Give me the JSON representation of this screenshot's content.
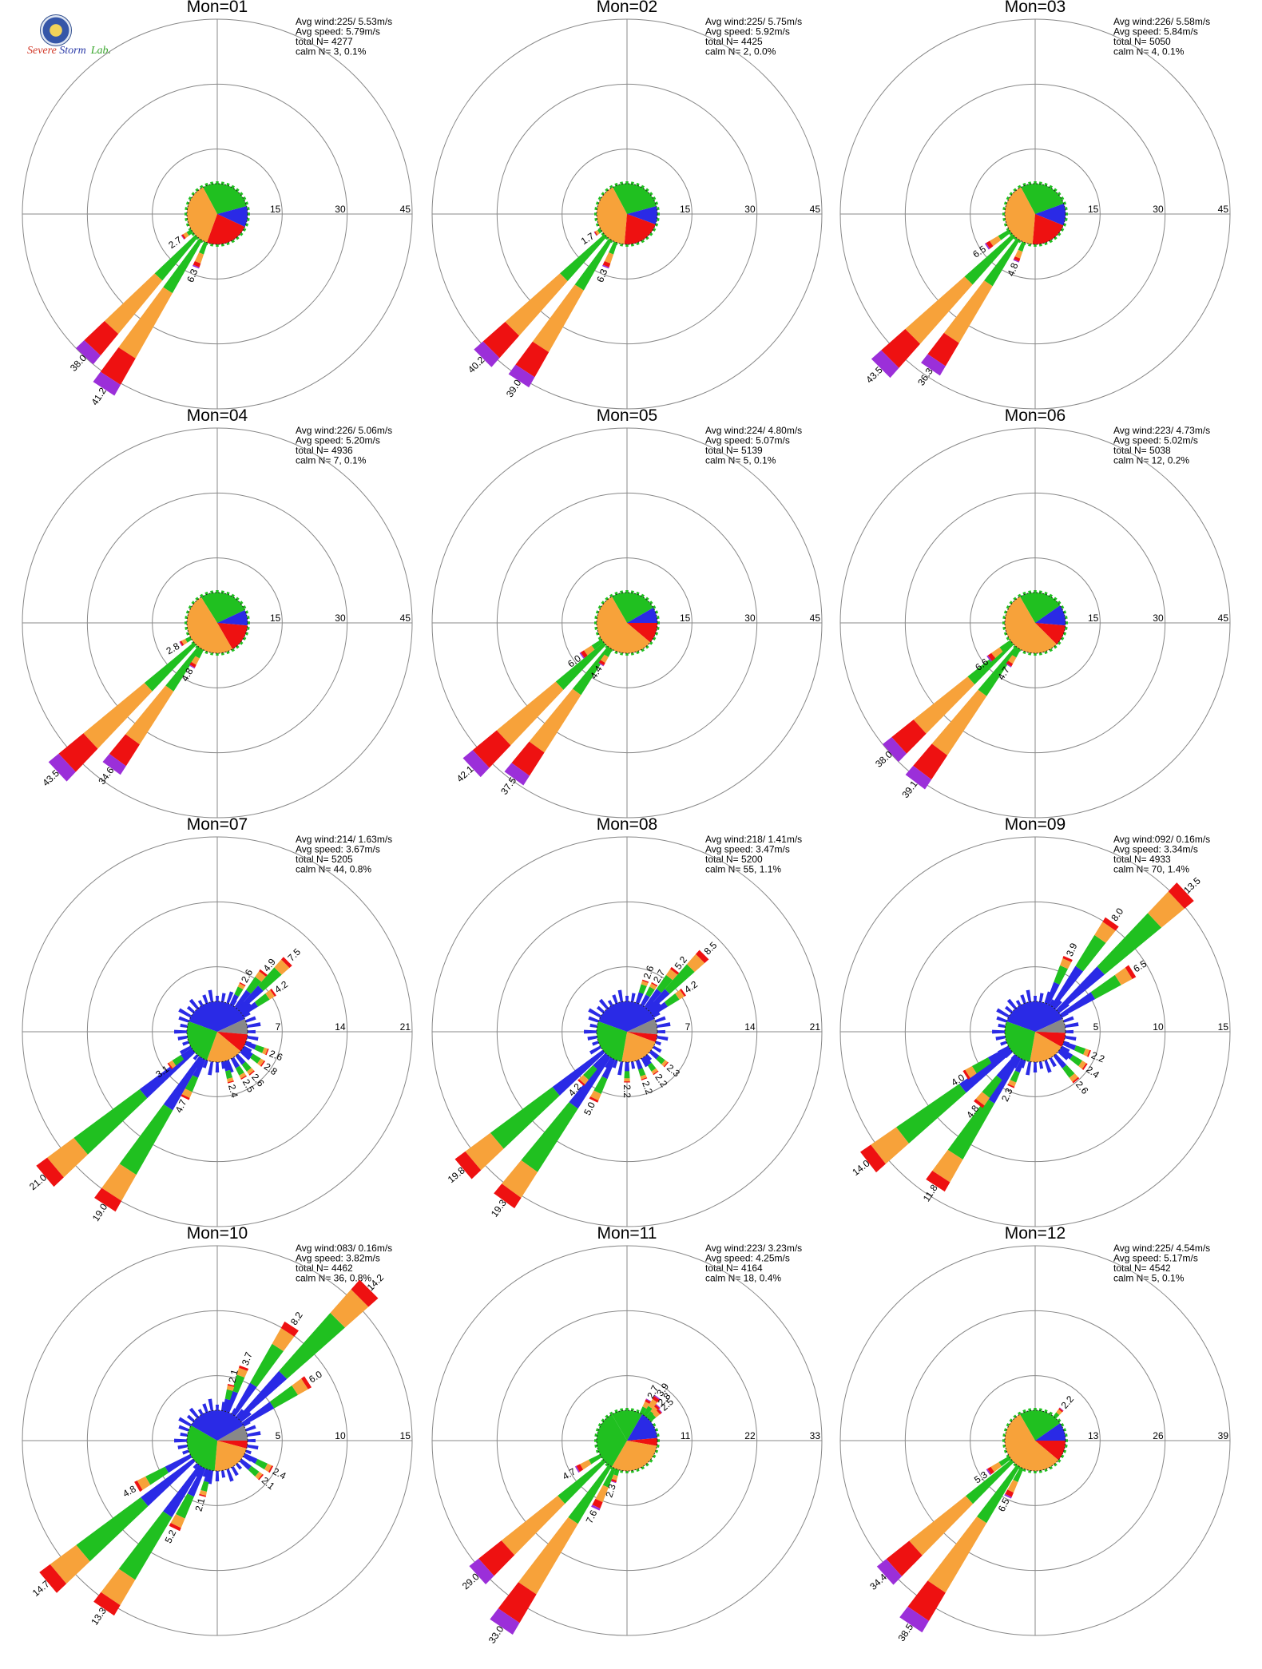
{
  "figure": {
    "logo_text": "SEVERE STORM Lab.",
    "bin_colors": [
      "#2a2ae6",
      "#20c020",
      "#f7a23a",
      "#ee1111",
      "#9b2fd9",
      "#888888"
    ],
    "grid_color": "#888888"
  },
  "chart_data": [
    {
      "type": "rose",
      "title": "Mon=01",
      "stats": [
        "Avg wind:225/ 5.53m/s",
        "Avg speed: 5.79m/s",
        "total N=      4277",
        "calm N=      3,   0.1%"
      ],
      "rings": [
        "15",
        "30",
        "45"
      ],
      "rmax": 45,
      "spikes": [
        {
          "dir": 213,
          "v": 41.2,
          "label": "41.2"
        },
        {
          "dir": 223,
          "v": 38.0,
          "label": "38.0"
        },
        {
          "dir": 202,
          "v": 6.3,
          "label": "6.3"
        },
        {
          "dir": 236,
          "v": 2.7,
          "label": "2.7"
        }
      ],
      "pie": [
        {
          "from": -28,
          "to": 75,
          "c": "#20c020"
        },
        {
          "from": 75,
          "to": 115,
          "c": "#2a2ae6"
        },
        {
          "from": 115,
          "to": 200,
          "c": "#ee1111"
        },
        {
          "from": 200,
          "to": 332,
          "c": "#f7a23a"
        }
      ]
    },
    {
      "type": "rose",
      "title": "Mon=02",
      "stats": [
        "Avg wind:225/ 5.75m/s",
        "Avg speed: 5.92m/s",
        "total N=      4425",
        "calm N=      2,   0.0%"
      ],
      "rings": [
        "15",
        "30",
        "45"
      ],
      "rmax": 45,
      "spikes": [
        {
          "dir": 213,
          "v": 39.0,
          "label": "39.0"
        },
        {
          "dir": 225,
          "v": 40.2,
          "label": "40.2"
        },
        {
          "dir": 202,
          "v": 6.3,
          "label": "6.3"
        },
        {
          "dir": 238,
          "v": 1.7,
          "label": "1.7"
        }
      ],
      "pie": [
        {
          "from": -28,
          "to": 75,
          "c": "#20c020"
        },
        {
          "from": 75,
          "to": 110,
          "c": "#2a2ae6"
        },
        {
          "from": 110,
          "to": 185,
          "c": "#ee1111"
        },
        {
          "from": 185,
          "to": 332,
          "c": "#f7a23a"
        }
      ]
    },
    {
      "type": "rose",
      "title": "Mon=03",
      "stats": [
        "Avg wind:226/ 5.58m/s",
        "Avg speed: 5.84m/s",
        "total N=      5050",
        "calm N=      4,   0.1%"
      ],
      "rings": [
        "15",
        "30",
        "45"
      ],
      "rmax": 45,
      "spikes": [
        {
          "dir": 214,
          "v": 36.3,
          "label": "36.3"
        },
        {
          "dir": 225,
          "v": 43.5,
          "label": "43.5"
        },
        {
          "dir": 202,
          "v": 4.8,
          "label": "4.8"
        },
        {
          "dir": 236,
          "v": 6.5,
          "label": "6.5"
        }
      ],
      "pie": [
        {
          "from": -28,
          "to": 70,
          "c": "#20c020"
        },
        {
          "from": 70,
          "to": 112,
          "c": "#2a2ae6"
        },
        {
          "from": 112,
          "to": 185,
          "c": "#ee1111"
        },
        {
          "from": 185,
          "to": 332,
          "c": "#f7a23a"
        }
      ]
    },
    {
      "type": "rose",
      "title": "Mon=04",
      "stats": [
        "Avg wind:226/ 5.06m/s",
        "Avg speed: 5.20m/s",
        "total N=      4936",
        "calm N=      7,   0.1%"
      ],
      "rings": [
        "15",
        "30",
        "45"
      ],
      "rmax": 45,
      "spikes": [
        {
          "dir": 216,
          "v": 34.6,
          "label": "34.6"
        },
        {
          "dir": 227,
          "v": 43.5,
          "label": "43.5"
        },
        {
          "dir": 210,
          "v": 4.8,
          "label": "4.8"
        },
        {
          "dir": 240,
          "v": 2.8,
          "label": "2.8"
        }
      ],
      "pie": [
        {
          "from": -32,
          "to": 65,
          "c": "#20c020"
        },
        {
          "from": 65,
          "to": 95,
          "c": "#2a2ae6"
        },
        {
          "from": 95,
          "to": 150,
          "c": "#ee1111"
        },
        {
          "from": 150,
          "to": 328,
          "c": "#f7a23a"
        }
      ]
    },
    {
      "type": "rose",
      "title": "Mon=05",
      "stats": [
        "Avg wind:224/ 4.80m/s",
        "Avg speed: 5.07m/s",
        "total N=      5139",
        "calm N=      5,   0.1%"
      ],
      "rings": [
        "15",
        "30",
        "45"
      ],
      "rmax": 45,
      "spikes": [
        {
          "dir": 216,
          "v": 37.5,
          "label": "37.5"
        },
        {
          "dir": 227,
          "v": 42.1,
          "label": "42.1"
        },
        {
          "dir": 212,
          "v": 4.4,
          "label": "4.4"
        },
        {
          "dir": 234,
          "v": 6.0,
          "label": "6.0"
        }
      ],
      "pie": [
        {
          "from": -30,
          "to": 60,
          "c": "#20c020"
        },
        {
          "from": 60,
          "to": 90,
          "c": "#2a2ae6"
        },
        {
          "from": 90,
          "to": 130,
          "c": "#ee1111"
        },
        {
          "from": 130,
          "to": 330,
          "c": "#f7a23a"
        }
      ]
    },
    {
      "type": "rose",
      "title": "Mon=06",
      "stats": [
        "Avg wind:223/ 4.73m/s",
        "Avg speed: 5.02m/s",
        "total N=      5038",
        "calm N=     12,   0.2%"
      ],
      "rings": [
        "15",
        "30",
        "45"
      ],
      "rmax": 45,
      "spikes": [
        {
          "dir": 217,
          "v": 39.1,
          "label": "39.1"
        },
        {
          "dir": 228,
          "v": 38.0,
          "label": "38.0"
        },
        {
          "dir": 212,
          "v": 4.7,
          "label": "4.7"
        },
        {
          "dir": 232,
          "v": 6.6,
          "label": "6.6"
        }
      ],
      "pie": [
        {
          "from": -30,
          "to": 55,
          "c": "#20c020"
        },
        {
          "from": 55,
          "to": 95,
          "c": "#2a2ae6"
        },
        {
          "from": 95,
          "to": 135,
          "c": "#ee1111"
        },
        {
          "from": 135,
          "to": 330,
          "c": "#f7a23a"
        }
      ]
    },
    {
      "type": "rose",
      "title": "Mon=07",
      "stats": [
        "Avg wind:214/ 1.63m/s",
        "Avg speed: 3.67m/s",
        "total N=      5205",
        "calm N=     44,   0.8%"
      ],
      "rings": [
        "7",
        "14",
        "21"
      ],
      "rmax": 21,
      "spikes": [
        {
          "dir": 213,
          "v": 19.0,
          "label": "19.0"
        },
        {
          "dir": 230,
          "v": 21.0,
          "label": "21.0"
        },
        {
          "dir": 206,
          "v": 4.7,
          "label": "4.7"
        },
        {
          "dir": 234,
          "v": 3.1,
          "label": "3.1"
        },
        {
          "dir": 28,
          "v": 2.6,
          "label": "2.6"
        },
        {
          "dir": 38,
          "v": 4.9,
          "label": "4.9"
        },
        {
          "dir": 45,
          "v": 7.5,
          "label": "7.5"
        },
        {
          "dir": 55,
          "v": 4.2,
          "label": "4.2"
        },
        {
          "dir": 112,
          "v": 2.6,
          "label": "2.6"
        },
        {
          "dir": 125,
          "v": 2.8,
          "label": "2.8"
        },
        {
          "dir": 140,
          "v": 2.6,
          "label": "2.6"
        },
        {
          "dir": 150,
          "v": 2.5,
          "label": "2.5"
        },
        {
          "dir": 165,
          "v": 2.4,
          "label": "2.4"
        }
      ],
      "pie": [
        {
          "from": -70,
          "to": 65,
          "c": "#2a2ae6"
        },
        {
          "from": 65,
          "to": 95,
          "c": "#888888"
        },
        {
          "from": 95,
          "to": 130,
          "c": "#ee1111"
        },
        {
          "from": 130,
          "to": 200,
          "c": "#f7a23a"
        },
        {
          "from": 200,
          "to": 290,
          "c": "#20c020"
        }
      ],
      "fringe": true
    },
    {
      "type": "rose",
      "title": "Mon=08",
      "stats": [
        "Avg wind:218/ 1.41m/s",
        "Avg speed: 3.47m/s",
        "total N=      5200",
        "calm N=     55,   1.1%"
      ],
      "rings": [
        "7",
        "14",
        "21"
      ],
      "rmax": 21,
      "spikes": [
        {
          "dir": 216,
          "v": 19.3,
          "label": "19.3"
        },
        {
          "dir": 230,
          "v": 19.8,
          "label": "19.8"
        },
        {
          "dir": 206,
          "v": 5.0,
          "label": "5.0"
        },
        {
          "dir": 222,
          "v": 4.2,
          "label": "4.2"
        },
        {
          "dir": 20,
          "v": 2.6,
          "label": "2.6"
        },
        {
          "dir": 30,
          "v": 2.7,
          "label": "2.7"
        },
        {
          "dir": 38,
          "v": 5.2,
          "label": "5.2"
        },
        {
          "dir": 45,
          "v": 8.5,
          "label": "8.5"
        },
        {
          "dir": 55,
          "v": 4.2,
          "label": "4.2"
        },
        {
          "dir": 130,
          "v": 2.3,
          "label": "2.3"
        },
        {
          "dir": 145,
          "v": 2.2,
          "label": "2.2"
        },
        {
          "dir": 160,
          "v": 2.2,
          "label": "2.2"
        },
        {
          "dir": 180,
          "v": 2.2,
          "label": "2.2"
        }
      ],
      "pie": [
        {
          "from": -70,
          "to": 65,
          "c": "#2a2ae6"
        },
        {
          "from": 65,
          "to": 95,
          "c": "#888888"
        },
        {
          "from": 95,
          "to": 110,
          "c": "#ee1111"
        },
        {
          "from": 110,
          "to": 190,
          "c": "#f7a23a"
        },
        {
          "from": 190,
          "to": 290,
          "c": "#20c020"
        }
      ],
      "fringe": true
    },
    {
      "type": "rose",
      "title": "Mon=09",
      "stats": [
        "Avg wind:092/ 0.16m/s",
        "Avg speed: 3.34m/s",
        "total N=      4933",
        "calm N=     70,   1.4%"
      ],
      "rings": [
        "5",
        "10",
        "15"
      ],
      "rmax": 15,
      "spikes": [
        {
          "dir": 47,
          "v": 13.5,
          "label": "13.5"
        },
        {
          "dir": 35,
          "v": 8.0,
          "label": "8.0"
        },
        {
          "dir": 58,
          "v": 6.5,
          "label": "6.5"
        },
        {
          "dir": 24,
          "v": 3.9,
          "label": "3.9"
        },
        {
          "dir": 213,
          "v": 11.8,
          "label": "11.8"
        },
        {
          "dir": 232,
          "v": 14.0,
          "label": "14.0"
        },
        {
          "dir": 218,
          "v": 4.8,
          "label": "4.8"
        },
        {
          "dir": 204,
          "v": 2.3,
          "label": "2.3"
        },
        {
          "dir": 238,
          "v": 4.0,
          "label": "4.0"
        },
        {
          "dir": 112,
          "v": 2.2,
          "label": "2.2"
        },
        {
          "dir": 125,
          "v": 2.4,
          "label": "2.4"
        },
        {
          "dir": 140,
          "v": 2.6,
          "label": "2.6"
        }
      ],
      "pie": [
        {
          "from": -70,
          "to": 65,
          "c": "#2a2ae6"
        },
        {
          "from": 65,
          "to": 92,
          "c": "#888888"
        },
        {
          "from": 92,
          "to": 120,
          "c": "#ee1111"
        },
        {
          "from": 120,
          "to": 190,
          "c": "#f7a23a"
        },
        {
          "from": 190,
          "to": 290,
          "c": "#20c020"
        }
      ],
      "fringe": true
    },
    {
      "type": "rose",
      "title": "Mon=10",
      "stats": [
        "Avg wind:083/ 0.16m/s",
        "Avg speed: 3.82m/s",
        "total N=      4462",
        "calm N=     36,   0.8%"
      ],
      "rings": [
        "5",
        "10",
        "15"
      ],
      "rmax": 15,
      "spikes": [
        {
          "dir": 45,
          "v": 14.2,
          "label": "14.2"
        },
        {
          "dir": 33,
          "v": 8.2,
          "label": "8.2"
        },
        {
          "dir": 57,
          "v": 6.0,
          "label": "6.0"
        },
        {
          "dir": 20,
          "v": 3.7,
          "label": "3.7"
        },
        {
          "dir": 14,
          "v": 2.1,
          "label": "2.1"
        },
        {
          "dir": 214,
          "v": 13.3,
          "label": "13.3"
        },
        {
          "dir": 230,
          "v": 14.7,
          "label": "14.7"
        },
        {
          "dir": 206,
          "v": 5.2,
          "label": "5.2"
        },
        {
          "dir": 240,
          "v": 4.8,
          "label": "4.8"
        },
        {
          "dir": 195,
          "v": 2.1,
          "label": "2.1"
        },
        {
          "dir": 118,
          "v": 2.4,
          "label": "2.4"
        },
        {
          "dir": 130,
          "v": 2.1,
          "label": "2.1"
        }
      ],
      "pie": [
        {
          "from": -60,
          "to": 60,
          "c": "#2a2ae6"
        },
        {
          "from": 60,
          "to": 90,
          "c": "#888888"
        },
        {
          "from": 90,
          "to": 105,
          "c": "#ee1111"
        },
        {
          "from": 105,
          "to": 185,
          "c": "#f7a23a"
        },
        {
          "from": 185,
          "to": 300,
          "c": "#20c020"
        }
      ],
      "fringe": true
    },
    {
      "type": "rose",
      "title": "Mon=11",
      "stats": [
        "Avg wind:223/ 3.23m/s",
        "Avg speed: 4.25m/s",
        "total N=      4164",
        "calm N=     18,   0.4%"
      ],
      "rings": [
        "11",
        "22",
        "33"
      ],
      "rmax": 33,
      "spikes": [
        {
          "dir": 214,
          "v": 33.0,
          "label": "33.0"
        },
        {
          "dir": 228,
          "v": 29.0,
          "label": "29.0"
        },
        {
          "dir": 205,
          "v": 7.6,
          "label": "7.6"
        },
        {
          "dir": 198,
          "v": 2.3,
          "label": "2.3"
        },
        {
          "dir": 240,
          "v": 4.7,
          "label": "4.7"
        },
        {
          "dir": 28,
          "v": 2.7,
          "label": "2.7"
        },
        {
          "dir": 35,
          "v": 3.9,
          "label": "3.9"
        },
        {
          "dir": 42,
          "v": 2.8,
          "label": "2.8"
        },
        {
          "dir": 48,
          "v": 2.5,
          "label": "2.5"
        }
      ],
      "pie": [
        {
          "from": -30,
          "to": 30,
          "c": "#20c020"
        },
        {
          "from": 30,
          "to": 85,
          "c": "#2a2ae6"
        },
        {
          "from": 85,
          "to": 100,
          "c": "#ee1111"
        },
        {
          "from": 100,
          "to": 210,
          "c": "#f7a23a"
        },
        {
          "from": 210,
          "to": 330,
          "c": "#20c020"
        }
      ]
    },
    {
      "type": "rose",
      "title": "Mon=12",
      "stats": [
        "Avg wind:225/ 4.54m/s",
        "Avg speed: 5.17m/s",
        "total N=      4542",
        "calm N=      5,   0.1%"
      ],
      "rings": [
        "13",
        "26",
        "39"
      ],
      "rmax": 39,
      "spikes": [
        {
          "dir": 214,
          "v": 38.5,
          "label": "38.5"
        },
        {
          "dir": 228,
          "v": 34.4,
          "label": "34.4"
        },
        {
          "dir": 206,
          "v": 6.5,
          "label": "6.5"
        },
        {
          "dir": 236,
          "v": 5.3,
          "label": "5.3"
        },
        {
          "dir": 40,
          "v": 2.2,
          "label": "2.2"
        }
      ],
      "pie": [
        {
          "from": -30,
          "to": 55,
          "c": "#20c020"
        },
        {
          "from": 55,
          "to": 90,
          "c": "#2a2ae6"
        },
        {
          "from": 90,
          "to": 130,
          "c": "#ee1111"
        },
        {
          "from": 130,
          "to": 330,
          "c": "#f7a23a"
        }
      ]
    }
  ]
}
